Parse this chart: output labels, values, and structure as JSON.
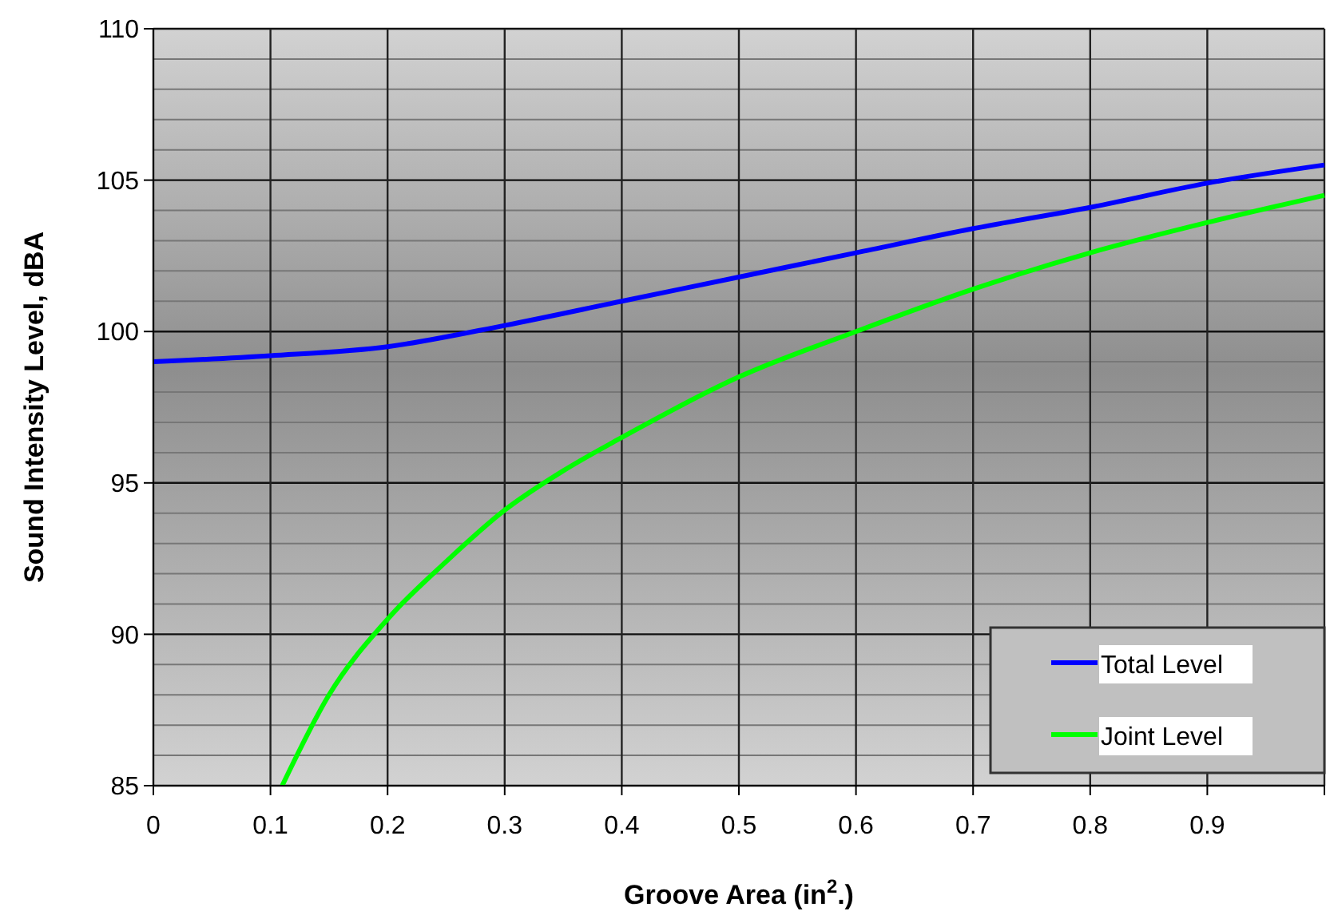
{
  "chart_data": {
    "type": "line",
    "xlabel": "Groove Area (in$^{2}$.)",
    "ylabel": "Sound Intensity Level, dBA",
    "xlim": [
      0,
      1
    ],
    "xticks": [
      0,
      0.1,
      0.2,
      0.3,
      0.4,
      0.5,
      0.6,
      0.7,
      0.8,
      0.9,
      {
        "value": 1,
        "label": null
      }
    ],
    "ylim": [
      85,
      110
    ],
    "yticks": [
      85,
      {
        "value": 86,
        "label": null
      },
      {
        "value": 87,
        "label": null
      },
      {
        "value": 88,
        "label": null
      },
      {
        "value": 89,
        "label": null
      },
      90,
      {
        "value": 91,
        "label": null
      },
      {
        "value": 92,
        "label": null
      },
      {
        "value": 93,
        "label": null
      },
      {
        "value": 94,
        "label": null
      },
      95,
      {
        "value": 96,
        "label": null
      },
      {
        "value": 97,
        "label": null
      },
      {
        "value": 98,
        "label": null
      },
      {
        "value": 99,
        "label": null
      },
      100,
      {
        "value": 101,
        "label": null
      },
      {
        "value": 102,
        "label": null
      },
      {
        "value": 103,
        "label": null
      },
      {
        "value": 104,
        "label": null
      },
      105,
      {
        "value": 106,
        "label": null
      },
      {
        "value": 107,
        "label": null
      },
      {
        "value": 108,
        "label": null
      },
      {
        "value": 109,
        "label": null
      },
      110
    ],
    "grid": true,
    "legend": "bottom right",
    "line_style": "solid",
    "series": [
      {
        "name": "Total Level",
        "color": "#0000ff",
        "x": [
          0,
          0.1,
          0.2,
          0.3,
          0.4,
          0.5,
          0.6,
          0.7,
          0.8,
          0.9,
          1
        ],
        "values": [
          99.0,
          99.2,
          99.5,
          100.2,
          101.0,
          101.8,
          102.6,
          103.4,
          104.1,
          104.9,
          105.5
        ]
      },
      {
        "name": "Joint Level",
        "color": "#00ff00",
        "x": [
          0.11,
          0.15,
          0.2,
          0.25,
          0.3,
          0.35,
          0.4,
          0.5,
          0.6,
          0.7,
          0.8,
          0.9,
          1
        ],
        "values": [
          85,
          88.0,
          90.5,
          92.4,
          94.1,
          95.4,
          96.5,
          98.5,
          100.0,
          101.4,
          102.6,
          103.6,
          104.5
        ]
      }
    ]
  }
}
